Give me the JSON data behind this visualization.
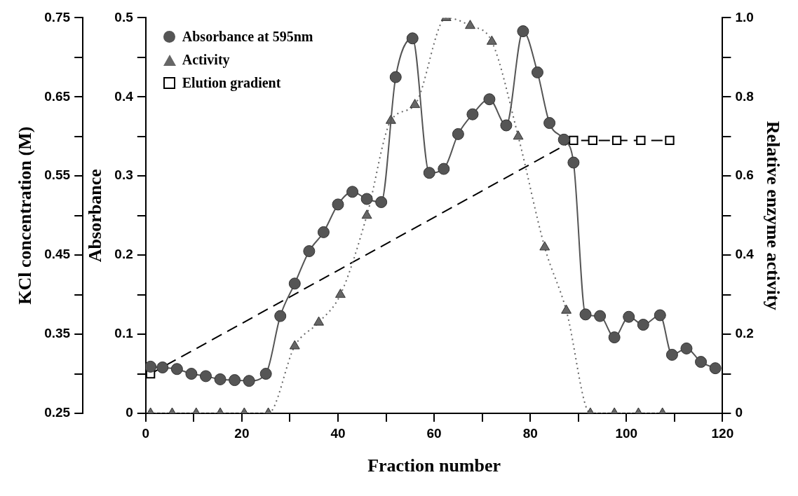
{
  "chart_data": {
    "type": "line",
    "xlabel": "Fraction number",
    "ylabel": "Absorbance",
    "y2label": "Relative enzyme activity",
    "y3label": "KCl concentration (M)",
    "xlim": [
      0,
      120
    ],
    "xticks": [
      0,
      {
        "value": 10,
        "label": null
      },
      20,
      {
        "value": 30,
        "label": null
      },
      40,
      {
        "value": 50,
        "label": null
      },
      60,
      {
        "value": 70,
        "label": null
      },
      80,
      {
        "value": 90,
        "label": null
      },
      100,
      {
        "value": 110,
        "label": null
      },
      120
    ],
    "ylim": [
      0,
      0.5
    ],
    "yticks": [
      0,
      {
        "value": 0.05,
        "label": null
      },
      0.1,
      {
        "value": 0.15,
        "label": null
      },
      0.2,
      {
        "value": 0.25,
        "label": null
      },
      0.3,
      {
        "value": 0.35,
        "label": null
      },
      0.4,
      {
        "value": 0.45,
        "label": null
      },
      0.5
    ],
    "y2lim": [
      0,
      1
    ],
    "y2ticks": [
      0,
      {
        "value": 0.1,
        "label": null
      },
      0.2,
      {
        "value": 0.3,
        "label": null
      },
      0.4,
      {
        "value": 0.5,
        "label": null
      },
      0.6,
      {
        "value": 0.7,
        "label": null
      },
      0.8,
      {
        "value": 0.9,
        "label": null
      },
      {
        "value": 1,
        "label": "1.0"
      }
    ],
    "y3lim": [
      0.25,
      0.75
    ],
    "y3ticks": [
      0.25,
      {
        "value": 0.3,
        "label": null
      },
      0.35,
      {
        "value": 0.4,
        "label": null
      },
      0.45,
      {
        "value": 0.5,
        "label": null
      },
      0.55,
      {
        "value": 0.6,
        "label": null
      },
      0.65,
      {
        "value": 0.7,
        "label": null
      },
      0.75
    ],
    "legend": "top left",
    "series": [
      {
        "name": "Absorbance at 595nm",
        "color": "#555555",
        "marker": "circle",
        "line_style": "solid",
        "x": [
          1,
          3.5,
          6.5,
          9.5,
          12.5,
          15.5,
          18.5,
          21.5,
          25,
          28,
          31,
          34,
          37,
          40,
          43,
          46,
          49,
          52,
          55.5,
          59,
          62,
          65,
          68,
          71.5,
          75,
          78.5,
          81.5,
          84,
          87,
          89,
          91.5,
          94.5,
          97.5,
          100.5,
          103.5,
          107,
          109.5,
          112.5,
          115.5,
          118.5
        ],
        "values": [
          0.059,
          0.058,
          0.056,
          0.05,
          0.047,
          0.043,
          0.042,
          0.041,
          0.05,
          0.123,
          0.164,
          0.205,
          0.229,
          0.264,
          0.28,
          0.271,
          0.267,
          0.425,
          0.474,
          0.304,
          0.309,
          0.353,
          0.378,
          0.397,
          0.364,
          0.483,
          0.431,
          0.367,
          0.346,
          0.317,
          0.125,
          0.123,
          0.096,
          0.122,
          0.112,
          0.124,
          0.074,
          0.082,
          0.065,
          0.057
        ]
      },
      {
        "name": "Activity",
        "color": "#666666",
        "marker": "triangle",
        "line_style": "dotted",
        "axis": "y2",
        "x": [
          1,
          5.5,
          10.5,
          15.5,
          20.5,
          25.5,
          31,
          36,
          40.5,
          46,
          51,
          56,
          62.5,
          67.5,
          72,
          77.5,
          83,
          87.5,
          92.5,
          97.5,
          102.5,
          107.5
        ],
        "values": [
          0,
          0,
          0,
          0,
          0,
          0,
          0.17,
          0.23,
          0.3,
          0.5,
          0.74,
          0.78,
          1.0,
          0.98,
          0.94,
          0.7,
          0.42,
          0.26,
          0,
          0,
          0,
          0
        ]
      },
      {
        "name": "Elution gradient",
        "color": "#000000",
        "marker": "square",
        "line_style": "dashed",
        "axis": "y3",
        "x": [
          1,
          89,
          93,
          98,
          103,
          109
        ],
        "values": [
          0.3,
          0.595,
          0.595,
          0.595,
          0.595,
          0.595
        ]
      }
    ]
  }
}
